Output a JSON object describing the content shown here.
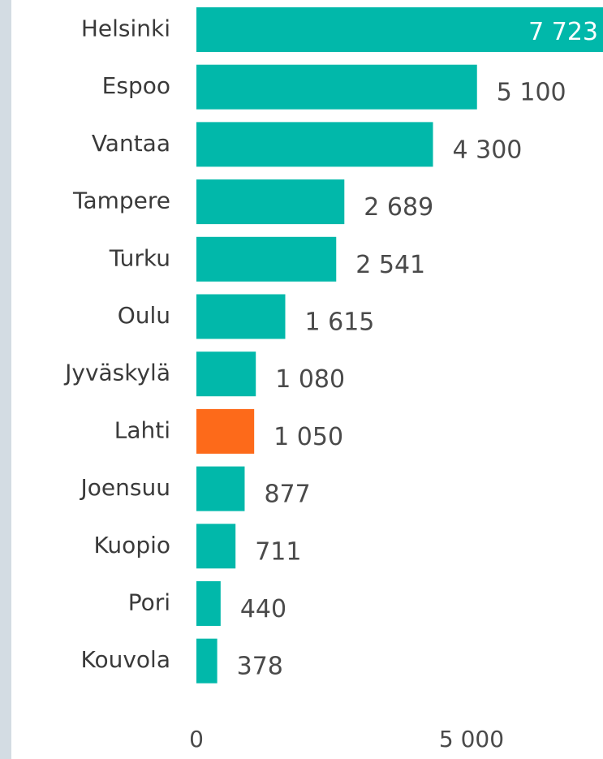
{
  "chart_data": {
    "type": "bar",
    "orientation": "horizontal",
    "categories": [
      "Helsinki",
      "Espoo",
      "Vantaa",
      "Tampere",
      "Turku",
      "Oulu",
      "Jyväskylä",
      "Lahti",
      "Joensuu",
      "Kuopio",
      "Pori",
      "Kouvola"
    ],
    "values": [
      7723,
      5100,
      4300,
      2689,
      2541,
      1615,
      1080,
      1050,
      877,
      711,
      440,
      378
    ],
    "value_labels": [
      "7 723",
      "5 100",
      "4 300",
      "2 689",
      "2 541",
      "1 615",
      "1 080",
      "1 050",
      "877",
      "711",
      "440",
      "378"
    ],
    "colors": [
      "#01b8aa",
      "#01b8aa",
      "#01b8aa",
      "#01b8aa",
      "#01b8aa",
      "#01b8aa",
      "#01b8aa",
      "#fd6a1a",
      "#01b8aa",
      "#01b8aa",
      "#01b8aa",
      "#01b8aa"
    ],
    "xlim": [
      0,
      7390
    ],
    "xticks": [
      0,
      {
        "value": 5000,
        "label": "5 000"
      }
    ],
    "grid": false
  }
}
